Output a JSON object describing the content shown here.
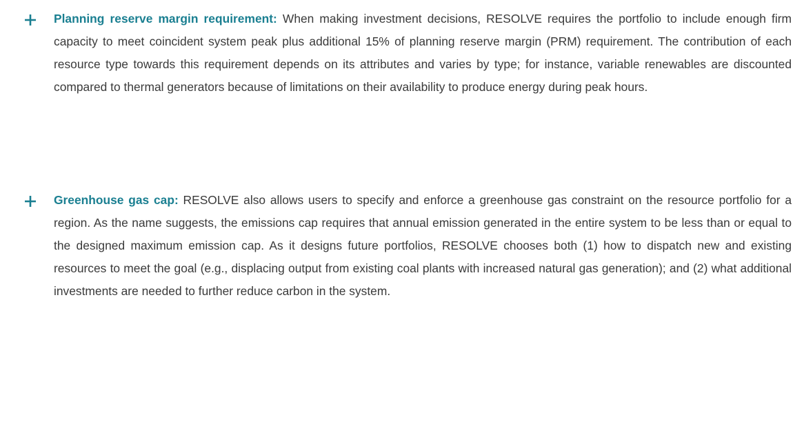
{
  "items": [
    {
      "title": "Planning reserve margin requirement:",
      "text": "When making investment decisions, RESOLVE requires the portfolio to include enough firm capacity to meet coincident system peak plus additional 15% of planning reserve margin (PRM) requirement. The contribution of each resource type towards this requirement depends on its attributes and varies by type; for instance, variable renewables are discounted compared to thermal generators because of limitations on their availability to produce energy during peak hours."
    },
    {
      "title": "Greenhouse gas cap:",
      "text": "RESOLVE also allows users to specify and enforce a greenhouse gas constraint on the resource portfolio for a region. As the name suggests, the emissions cap requires that annual emission generated in the entire system to be less than or equal to the designed maximum emission cap. As it designs future portfolios, RESOLVE chooses both (1) how to dispatch new and existing resources to meet the goal (e.g., displacing output from existing coal plants with increased natural gas generation); and (2) what additional investments are needed to further reduce carbon in the system."
    }
  ]
}
